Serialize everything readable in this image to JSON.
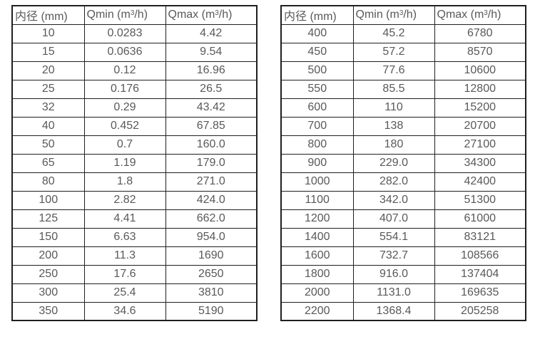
{
  "page": {
    "background_color": "#ffffff",
    "text_color": "#595959",
    "border_color": "#1f1f1f"
  },
  "tables": [
    {
      "name": "flow-spec-table-small-diameters",
      "cell_names": [
        "diameter-cell",
        "qmin-cell",
        "qmax-cell"
      ],
      "headers": [
        {
          "name": "header-diameter",
          "segments": [
            {
              "t": "内径 (mm)"
            }
          ]
        },
        {
          "name": "header-qmin",
          "segments": [
            {
              "t": "Qmin (m"
            },
            {
              "t": "3",
              "sup": true
            },
            {
              "t": "/h)"
            }
          ]
        },
        {
          "name": "header-qmax",
          "segments": [
            {
              "t": "Qmax (m"
            },
            {
              "t": "3",
              "sup": true
            },
            {
              "t": "/h)"
            }
          ]
        }
      ],
      "rows": [
        [
          "10",
          "0.0283",
          "4.42"
        ],
        [
          "15",
          "0.0636",
          "9.54"
        ],
        [
          "20",
          "0.12",
          "16.96"
        ],
        [
          "25",
          "0.176",
          "26.5"
        ],
        [
          "32",
          "0.29",
          "43.42"
        ],
        [
          "40",
          "0.452",
          "67.85"
        ],
        [
          "50",
          "0.7",
          "160.0"
        ],
        [
          "65",
          "1.19",
          "179.0"
        ],
        [
          "80",
          "1.8",
          "271.0"
        ],
        [
          "100",
          "2.82",
          "424.0"
        ],
        [
          "125",
          "4.41",
          "662.0"
        ],
        [
          "150",
          "6.63",
          "954.0"
        ],
        [
          "200",
          "11.3",
          "1690"
        ],
        [
          "250",
          "17.6",
          "2650"
        ],
        [
          "300",
          "25.4",
          "3810"
        ],
        [
          "350",
          "34.6",
          "5190"
        ]
      ]
    },
    {
      "name": "flow-spec-table-large-diameters",
      "cell_names": [
        "diameter-cell",
        "qmin-cell",
        "qmax-cell"
      ],
      "headers": [
        {
          "name": "header-diameter",
          "segments": [
            {
              "t": "内径 (mm)"
            }
          ]
        },
        {
          "name": "header-qmin",
          "segments": [
            {
              "t": "Qmin (m"
            },
            {
              "t": "3",
              "sup": true
            },
            {
              "t": "/h)"
            }
          ]
        },
        {
          "name": "header-qmax",
          "segments": [
            {
              "t": "Qmax (m"
            },
            {
              "t": "3",
              "sup": true
            },
            {
              "t": "/h)"
            }
          ]
        }
      ],
      "rows": [
        [
          "400",
          "45.2",
          "6780"
        ],
        [
          "450",
          "57.2",
          "8570"
        ],
        [
          "500",
          "77.6",
          "10600"
        ],
        [
          "550",
          "85.5",
          "12800"
        ],
        [
          "600",
          "110",
          "15200"
        ],
        [
          "700",
          "138",
          "20700"
        ],
        [
          "800",
          "180",
          "27100"
        ],
        [
          "900",
          "229.0",
          "34300"
        ],
        [
          "1000",
          "282.0",
          "42400"
        ],
        [
          "1100",
          "342.0",
          "51300"
        ],
        [
          "1200",
          "407.0",
          "61000"
        ],
        [
          "1400",
          "554.1",
          "83121"
        ],
        [
          "1600",
          "732.7",
          "108566"
        ],
        [
          "1800",
          "916.0",
          "137404"
        ],
        [
          "2000",
          "1131.0",
          "169635"
        ],
        [
          "2200",
          "1368.4",
          "205258"
        ]
      ]
    }
  ]
}
